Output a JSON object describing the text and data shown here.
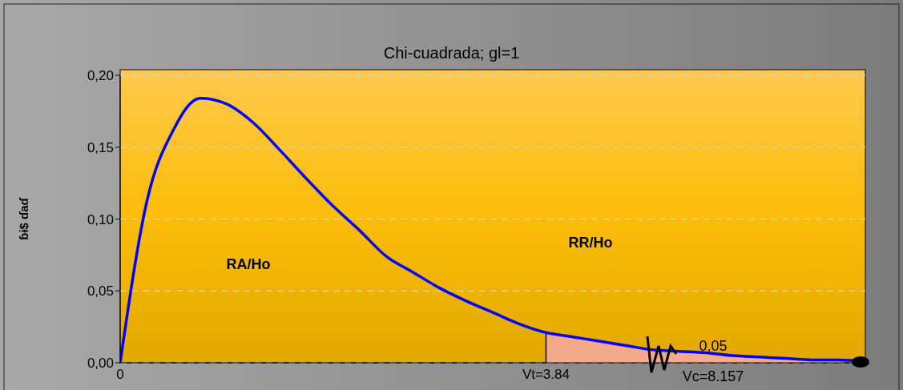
{
  "chart_data": {
    "type": "line",
    "title": "Chi-cuadrada; gl=1",
    "ylabel": "ɓɨ$ ɗaɗ",
    "categories": [
      "0",
      null,
      null,
      null,
      null,
      null,
      null,
      null,
      null,
      null,
      null,
      null,
      null,
      null,
      null,
      null,
      "Vt=3.84",
      null,
      null,
      null,
      null,
      null,
      null,
      null,
      null,
      null,
      null,
      null,
      null
    ],
    "series": [
      {
        "color": "#0000ff",
        "values": [
          0,
          0.112,
          0.162,
          0.184,
          0.18,
          0.167,
          0.148,
          0.128,
          0.109,
          0.092,
          0.074,
          0.063,
          0.052,
          0.043,
          0.035,
          0.027,
          0.021,
          0.018,
          0.015,
          0.012,
          0.009,
          0.008,
          0.007,
          0.005,
          0.004,
          0.003,
          0.002,
          0.002,
          0.001
        ]
      },
      {
        "type": "area",
        "color": "#f4a98a",
        "values": [
          null,
          null,
          null,
          null,
          null,
          null,
          null,
          null,
          null,
          null,
          null,
          null,
          null,
          null,
          null,
          null,
          0.021,
          0.018,
          0.015,
          0.012,
          0.009,
          0.008,
          0.007,
          0.005,
          0.004,
          0.003,
          0.002,
          0.002,
          null
        ]
      }
    ],
    "ylim": [
      0,
      0.2
    ],
    "yticks": [
      {
        "value": 0,
        "label": "0,00"
      },
      {
        "value": 0.05,
        "label": "0,05"
      },
      {
        "value": 0.1,
        "label": "0,10"
      },
      {
        "value": 0.15,
        "label": "0,15"
      },
      {
        "value": 0.2,
        "label": "0,20"
      }
    ],
    "grid": "y",
    "marker": "none",
    "line_style": "solid",
    "ref_lines": [
      {
        "axis": "x",
        "value": "Vt=3.84",
        "color": "#000000"
      }
    ],
    "annotations": [
      "RA/Ho",
      "RR/Ho",
      "0,05",
      "Vc=8.157"
    ]
  }
}
